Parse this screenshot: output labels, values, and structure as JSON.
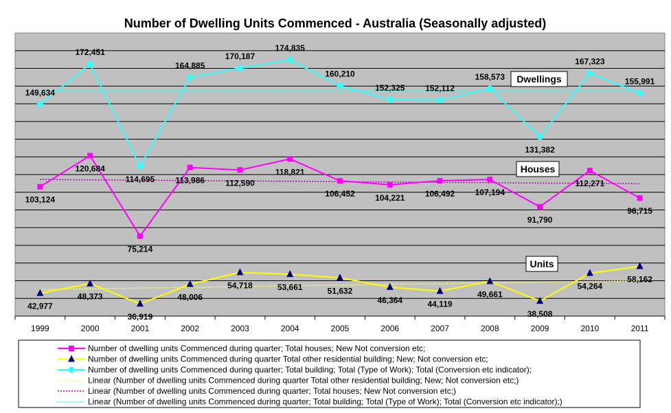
{
  "chart_data": {
    "type": "line",
    "title": "Number of Dwelling Units Commenced - Australia (Seasonally adjusted)",
    "xlabel": "",
    "ylabel": "",
    "categories": [
      "1999",
      "2000",
      "2001",
      "2002",
      "2003",
      "2004",
      "2005",
      "2006",
      "2007",
      "2008",
      "2009",
      "2010",
      "2011"
    ],
    "value_labels": {
      "houses": [
        "103,124",
        "120,684",
        "75,214",
        "113,986",
        "112,590",
        "118,821",
        "106,452",
        "104,221",
        "106,492",
        "107,194",
        "91,790",
        "112,271",
        "96,715"
      ],
      "units": [
        "42,977",
        "48,373",
        "36,919",
        "48,006",
        "54,718",
        "53,661",
        "51,632",
        "46,364",
        "44,119",
        "49,661",
        "38,508",
        "54,264",
        "58,162"
      ],
      "dwellings": [
        "149,634",
        "172,451",
        "114,695",
        "164,885",
        "170,187",
        "174,835",
        "160,210",
        "152,325",
        "152,112",
        "158,573",
        "131,382",
        "167,323",
        "155,991"
      ]
    },
    "group_labels": {
      "dwellings": "Dwellings",
      "houses": "Houses",
      "units": "Units"
    },
    "series": [
      {
        "key": "houses",
        "name": "Number of dwelling units Commenced during quarter;  Total houses;  New  Not conversion etc;",
        "color": "#ff00ff",
        "marker": "square",
        "values": [
          103124,
          120684,
          75214,
          113986,
          112590,
          118821,
          106452,
          104221,
          106492,
          107194,
          91790,
          112271,
          96715
        ]
      },
      {
        "key": "units",
        "name": "Number of dwelling units Commenced during quarter  Total other residential building;  New;  Not conversion etc;",
        "color": "#ffff00",
        "marker": "triangle",
        "values": [
          42977,
          48373,
          36919,
          48006,
          54718,
          53661,
          51632,
          46364,
          44119,
          49661,
          38508,
          54264,
          58162
        ]
      },
      {
        "key": "dwellings",
        "name": "Number of dwelling units Commenced during quarter; Total building;  Total (Type of Work);  Total (Conversion etc indicator);",
        "color": "#33ffff",
        "marker": "circle",
        "values": [
          149634,
          172451,
          114695,
          164885,
          170187,
          174835,
          160210,
          152325,
          152112,
          158573,
          131382,
          167323,
          155991
        ]
      }
    ],
    "trendlines": [
      {
        "key": "units",
        "name": "Linear (Number of dwelling units Commenced during quarter  Total other residential building;  New;  Not conversion etc;)",
        "color": "#ffff66",
        "start": 45000,
        "end": 50000
      },
      {
        "key": "houses",
        "name": "Linear (Number of dwelling units Commenced during quarter;  Total houses;  New  Not conversion etc;)",
        "color": "#aa00aa",
        "start": 107200,
        "end": 104800
      },
      {
        "key": "dwellings",
        "name": "Linear (Number of dwelling units Commenced during quarter; Total building;  Total (Type of Work);  Total (Conversion etc indicator);)",
        "color": "#33ffff",
        "start": 157200,
        "end": 157200
      }
    ],
    "ylim": [
      30000,
      190000
    ],
    "grid": true,
    "legend_position": "bottom"
  }
}
